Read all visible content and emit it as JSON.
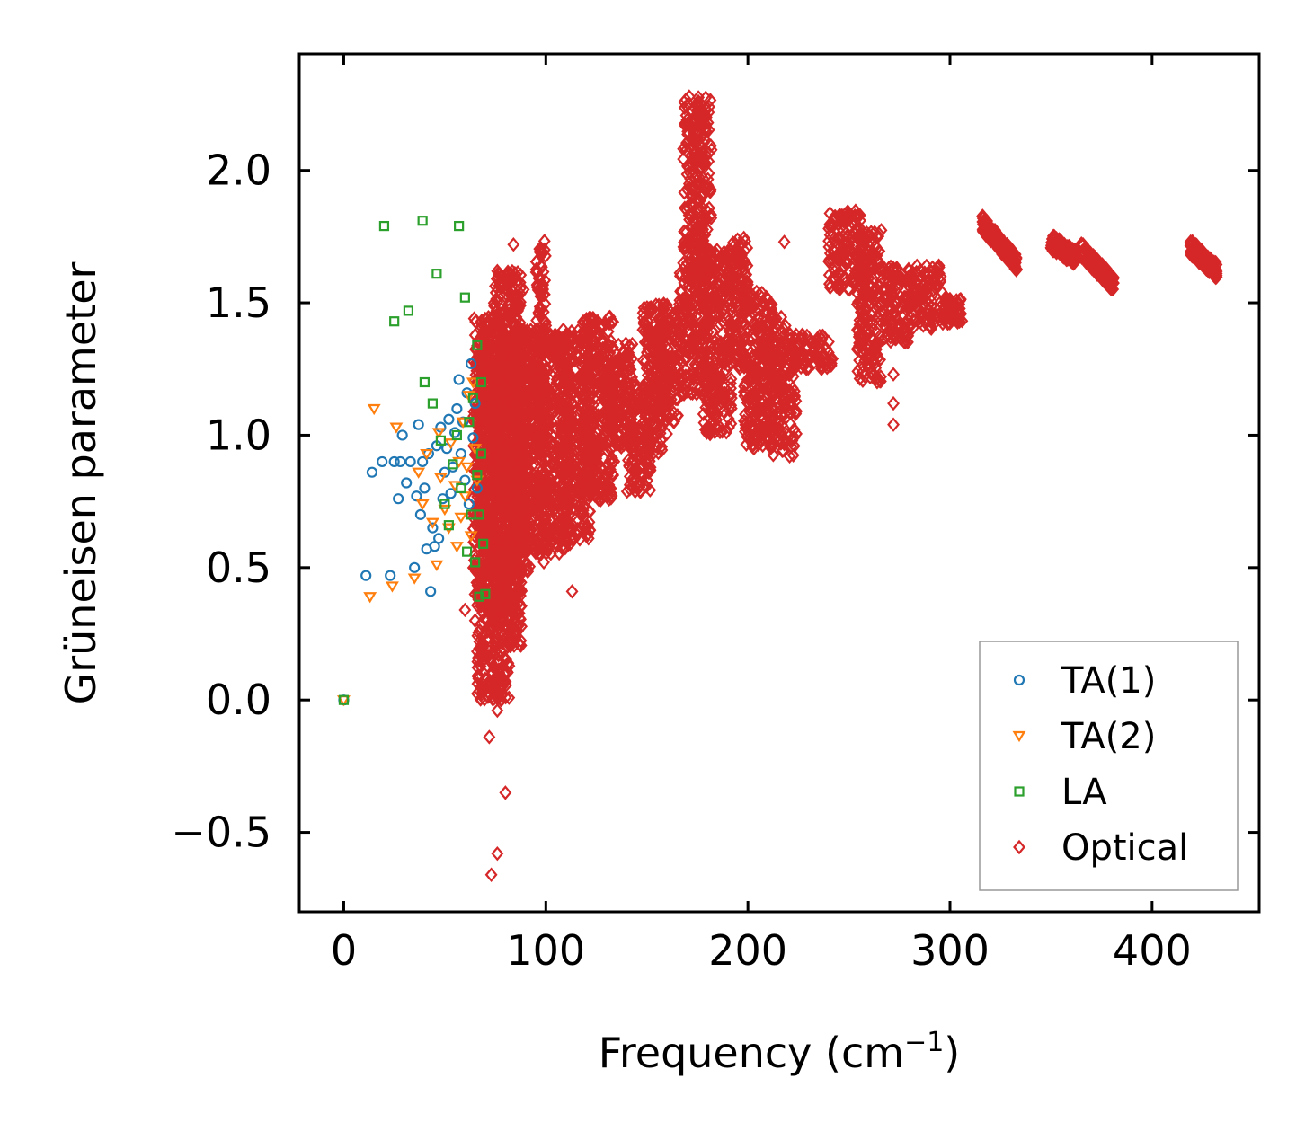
{
  "chart_data": {
    "type": "scatter",
    "title": "",
    "xlabel": "Frequency (cm",
    "xlabel_sup": "−1",
    "xlabel_close": ")",
    "ylabel": "Grüneisen parameter",
    "xlim": [
      -22,
      453
    ],
    "ylim": [
      -0.8,
      2.44
    ],
    "xticks": [
      0,
      100,
      200,
      300,
      400
    ],
    "xtick_labels": [
      "0",
      "100",
      "200",
      "300",
      "400"
    ],
    "yticks": [
      -0.5,
      0.0,
      0.5,
      1.0,
      1.5,
      2.0
    ],
    "ytick_labels": [
      "−0.5",
      "0.0",
      "0.5",
      "1.0",
      "1.5",
      "2.0"
    ],
    "grid": false,
    "legend_position": "lower-right",
    "series": [
      {
        "name": "TA(1)",
        "color": "#1f77b4",
        "marker": "circle",
        "points": [
          [
            0,
            0.0
          ],
          [
            11,
            0.47
          ],
          [
            14,
            0.86
          ],
          [
            19,
            0.9
          ],
          [
            23,
            0.47
          ],
          [
            25,
            0.9
          ],
          [
            27,
            0.76
          ],
          [
            28,
            0.9
          ],
          [
            29,
            1.0
          ],
          [
            31,
            0.82
          ],
          [
            33,
            0.9
          ],
          [
            35,
            0.5
          ],
          [
            36,
            0.77
          ],
          [
            37,
            1.04
          ],
          [
            38,
            0.7
          ],
          [
            39,
            0.9
          ],
          [
            40,
            0.8
          ],
          [
            41,
            0.57
          ],
          [
            42,
            0.93
          ],
          [
            43,
            0.41
          ],
          [
            44,
            0.65
          ],
          [
            45,
            0.58
          ],
          [
            46,
            0.96
          ],
          [
            47,
            0.61
          ],
          [
            48,
            1.03
          ],
          [
            49,
            0.76
          ],
          [
            50,
            0.86
          ],
          [
            51,
            0.95
          ],
          [
            52,
            1.06
          ],
          [
            53,
            0.78
          ],
          [
            54,
            0.88
          ],
          [
            55,
            1.01
          ],
          [
            56,
            1.1
          ],
          [
            57,
            1.21
          ],
          [
            58,
            0.93
          ],
          [
            59,
            1.05
          ],
          [
            60,
            0.83
          ],
          [
            61,
            1.16
          ],
          [
            62,
            0.74
          ],
          [
            63,
            1.27
          ],
          [
            64,
            0.99
          ],
          [
            65,
            1.12
          ],
          [
            66,
            0.8
          ]
        ]
      },
      {
        "name": "TA(2)",
        "color": "#ff7f0e",
        "marker": "triangle-down",
        "points": [
          [
            0,
            0.0
          ],
          [
            13,
            0.39
          ],
          [
            15,
            1.1
          ],
          [
            24,
            0.43
          ],
          [
            26,
            1.03
          ],
          [
            35,
            0.46
          ],
          [
            37,
            0.86
          ],
          [
            39,
            0.74
          ],
          [
            41,
            0.93
          ],
          [
            44,
            0.67
          ],
          [
            46,
            0.51
          ],
          [
            47,
            1.01
          ],
          [
            48,
            0.84
          ],
          [
            50,
            0.72
          ],
          [
            52,
            0.65
          ],
          [
            53,
            0.97
          ],
          [
            55,
            0.81
          ],
          [
            56,
            0.58
          ],
          [
            57,
            0.9
          ],
          [
            58,
            0.69
          ],
          [
            59,
            1.05
          ],
          [
            60,
            0.77
          ],
          [
            61,
            0.88
          ],
          [
            62,
            1.15
          ],
          [
            63,
            0.62
          ],
          [
            64,
            1.2
          ],
          [
            65,
            0.95
          ],
          [
            66,
            0.83
          ]
        ]
      },
      {
        "name": "LA",
        "color": "#2ca02c",
        "marker": "square",
        "points": [
          [
            0,
            0.0
          ],
          [
            20,
            1.79
          ],
          [
            25,
            1.43
          ],
          [
            32,
            1.47
          ],
          [
            39,
            1.81
          ],
          [
            40,
            1.2
          ],
          [
            44,
            1.12
          ],
          [
            46,
            1.61
          ],
          [
            48,
            0.98
          ],
          [
            50,
            0.74
          ],
          [
            52,
            0.66
          ],
          [
            54,
            0.89
          ],
          [
            56,
            1.0
          ],
          [
            57,
            1.79
          ],
          [
            58,
            0.8
          ],
          [
            60,
            1.52
          ],
          [
            61,
            0.56
          ],
          [
            62,
            1.05
          ],
          [
            63,
            0.7
          ],
          [
            64,
            1.14
          ],
          [
            65,
            0.52
          ],
          [
            66,
            1.34
          ],
          [
            67,
            0.39
          ],
          [
            68,
            0.93
          ],
          [
            69,
            0.59
          ],
          [
            70,
            0.4
          ],
          [
            67,
            0.7
          ],
          [
            68,
            1.2
          ],
          [
            66,
            0.85
          ]
        ]
      },
      {
        "name": "Optical",
        "color": "#d62728",
        "marker": "diamond",
        "points": []
      }
    ],
    "optical_bands": [
      {
        "x": [
          64,
          76
        ],
        "ylo": 0.35,
        "yhi": 1.45
      },
      {
        "x": [
          66,
          82
        ],
        "ylo": 0.0,
        "yhi": 1.38
      },
      {
        "x": [
          74,
          88
        ],
        "ylo": 0.2,
        "yhi": 1.62
      },
      {
        "x": [
          78,
          92
        ],
        "ylo": 0.45,
        "yhi": 1.4
      },
      {
        "x": [
          85,
          100
        ],
        "ylo": 0.55,
        "yhi": 1.4
      },
      {
        "x": [
          95,
          100
        ],
        "ylo": 1.1,
        "yhi": 1.74
      },
      {
        "x": [
          96,
          112
        ],
        "ylo": 0.55,
        "yhi": 1.38
      },
      {
        "x": [
          108,
          122
        ],
        "ylo": 0.6,
        "yhi": 1.4
      },
      {
        "x": [
          118,
          134
        ],
        "ylo": 0.75,
        "yhi": 1.45
      },
      {
        "x": [
          130,
          144
        ],
        "ylo": 0.95,
        "yhi": 1.35
      },
      {
        "x": [
          140,
          152
        ],
        "ylo": 0.78,
        "yhi": 1.2
      },
      {
        "x": [
          148,
          160
        ],
        "ylo": 0.92,
        "yhi": 1.5
      },
      {
        "x": [
          156,
          166
        ],
        "ylo": 1.05,
        "yhi": 1.48
      },
      {
        "x": [
          166,
          180
        ],
        "ylo": 1.15,
        "yhi": 1.62
      },
      {
        "x": [
          178,
          192
        ],
        "ylo": 1.0,
        "yhi": 1.7
      },
      {
        "x": [
          190,
          200
        ],
        "ylo": 1.25,
        "yhi": 1.75
      },
      {
        "x": [
          198,
          212
        ],
        "ylo": 0.95,
        "yhi": 1.55
      },
      {
        "x": [
          210,
          224
        ],
        "ylo": 0.92,
        "yhi": 1.45
      },
      {
        "x": [
          222,
          242
        ],
        "ylo": 1.25,
        "yhi": 1.38
      },
      {
        "x": [
          240,
          256
        ],
        "ylo": 1.55,
        "yhi": 1.85
      },
      {
        "x": [
          254,
          266
        ],
        "ylo": 1.2,
        "yhi": 1.78
      },
      {
        "x": [
          266,
          280
        ],
        "ylo": 1.35,
        "yhi": 1.64
      },
      {
        "x": [
          280,
          296
        ],
        "ylo": 1.4,
        "yhi": 1.65
      },
      {
        "x": [
          296,
          306
        ],
        "ylo": 1.42,
        "yhi": 1.52
      }
    ],
    "optical_peak": {
      "x": [
        168,
        182
      ],
      "ylo": 1.6,
      "yhi": 2.28
    },
    "optical_strips": [
      {
        "x0": 316,
        "x1": 333,
        "y0": 1.8,
        "y1": 1.65
      },
      {
        "x0": 350,
        "x1": 362,
        "y0": 1.73,
        "y1": 1.67
      },
      {
        "x0": 365,
        "x1": 381,
        "y0": 1.7,
        "y1": 1.57
      },
      {
        "x0": 419,
        "x1": 432,
        "y0": 1.71,
        "y1": 1.62
      }
    ],
    "optical_outliers": [
      [
        72,
        -0.14
      ],
      [
        73,
        -0.66
      ],
      [
        76,
        -0.58
      ],
      [
        80,
        -0.35
      ],
      [
        70,
        0.05
      ],
      [
        76,
        -0.04
      ],
      [
        272,
        1.04
      ],
      [
        272,
        1.12
      ],
      [
        272,
        1.23
      ],
      [
        84,
        1.72
      ],
      [
        113,
        0.41
      ],
      [
        99,
        0.52
      ],
      [
        170,
        1.65
      ],
      [
        218,
        1.73
      ],
      [
        89,
        1.55
      ],
      [
        76,
        1.62
      ],
      [
        74,
        0.04
      ],
      [
        78,
        0.0
      ],
      [
        60,
        0.34
      ],
      [
        65,
        0.3
      ]
    ]
  }
}
